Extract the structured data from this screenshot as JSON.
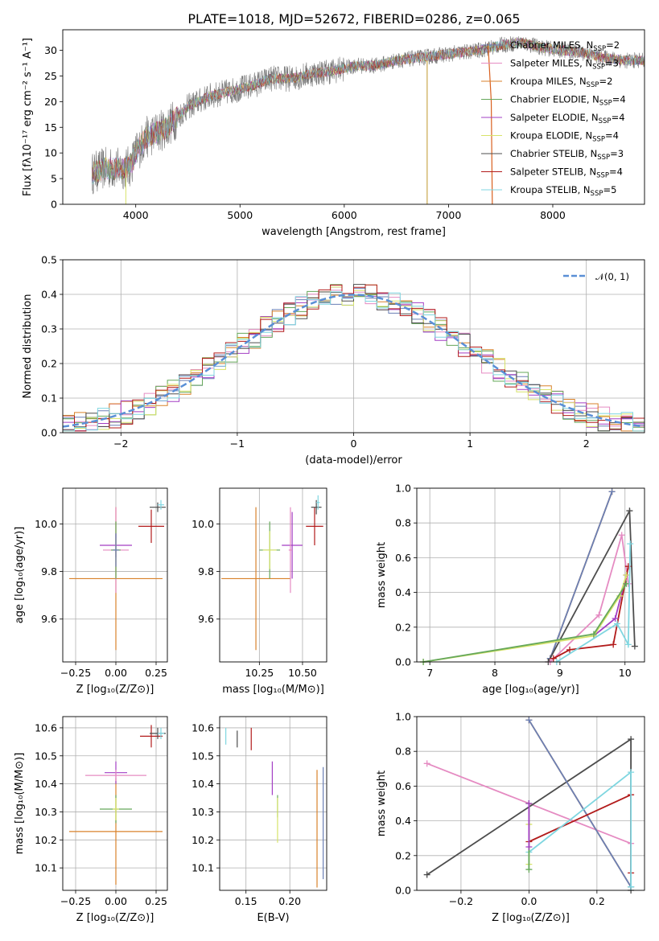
{
  "chart_data": [
    {
      "id": "spectrum",
      "type": "line",
      "title": "PLATE=1018, MJD=52672, FIBERID=0286, z=0.065",
      "xlabel": "wavelength [Angstrom, rest frame]",
      "ylabel": "Flux [fλ10⁻¹⁷ erg cm⁻² s⁻¹ A⁻¹]",
      "xlim": [
        3300,
        8880
      ],
      "ylim": [
        0,
        34
      ],
      "xticks": [
        "4000",
        "5000",
        "6000",
        "7000",
        "8000"
      ],
      "yticks": [
        "0",
        "5",
        "10",
        "15",
        "20",
        "25",
        "30"
      ],
      "legend_position": "right",
      "legend": [
        {
          "label": "Chabrier MILES, N",
          "sub": "SSP",
          "suffix": "=2",
          "color": "#6a7fb5"
        },
        {
          "label": "Salpeter MILES, N",
          "sub": "SSP",
          "suffix": "=3",
          "color": "#e58bc2"
        },
        {
          "label": "Kroupa MILES, N",
          "sub": "SSP",
          "suffix": "=2",
          "color": "#d9822b"
        },
        {
          "label": "Chabrier ELODIE, N",
          "sub": "SSP",
          "suffix": "=4",
          "color": "#66a85a"
        },
        {
          "label": "Salpeter ELODIE, N",
          "sub": "SSP",
          "suffix": "=4",
          "color": "#a33fc4"
        },
        {
          "label": "Kroupa ELODIE, N",
          "sub": "SSP",
          "suffix": "=4",
          "color": "#d7e36a"
        },
        {
          "label": "Chabrier STELIB, N",
          "sub": "SSP",
          "suffix": "=3",
          "color": "#4d4d4d"
        },
        {
          "label": "Salpeter STELIB, N",
          "sub": "SSP",
          "suffix": "=4",
          "color": "#b21b1b"
        },
        {
          "label": "Kroupa STELIB, N",
          "sub": "SSP",
          "suffix": "=5",
          "color": "#7fd6e0"
        }
      ],
      "continuum_anchors": [
        [
          3580,
          6
        ],
        [
          3700,
          7
        ],
        [
          3800,
          7
        ],
        [
          3900,
          7
        ],
        [
          3950,
          7.5
        ],
        [
          4000,
          10
        ],
        [
          4100,
          13
        ],
        [
          4300,
          15
        ],
        [
          4500,
          19
        ],
        [
          4700,
          21
        ],
        [
          4900,
          22
        ],
        [
          5100,
          23
        ],
        [
          5300,
          24.5
        ],
        [
          5500,
          24.5
        ],
        [
          5700,
          25.5
        ],
        [
          5900,
          26
        ],
        [
          6100,
          27
        ],
        [
          6300,
          27
        ],
        [
          6500,
          28
        ],
        [
          6700,
          28.5
        ],
        [
          6900,
          29
        ],
        [
          7100,
          29.5
        ],
        [
          7300,
          30
        ],
        [
          7500,
          31
        ],
        [
          7700,
          31.5
        ],
        [
          7900,
          30.5
        ],
        [
          8100,
          30
        ],
        [
          8300,
          29.5
        ],
        [
          8500,
          28.5
        ],
        [
          8700,
          28
        ],
        [
          8880,
          28
        ]
      ]
    },
    {
      "id": "residuals",
      "type": "line",
      "xlabel": "(data-model)/error",
      "ylabel": "Normed distribution",
      "xlim": [
        -2.5,
        2.5
      ],
      "ylim": [
        0,
        0.5
      ],
      "xticks": [
        "−2",
        "−1",
        "0",
        "1",
        "2"
      ],
      "yticks": [
        "0.0",
        "0.1",
        "0.2",
        "0.3",
        "0.4",
        "0.5"
      ],
      "grid": true,
      "legend_position": "top-right",
      "legend": [
        {
          "label": "𝒩(0, 1)",
          "color": "#5a8fd6"
        }
      ]
    },
    {
      "id": "age-vs-Z",
      "type": "scatter",
      "xlabel": "Z [log₁₀(Z/Z⊙)]",
      "ylabel": "age  [log₁₀(age/yr)]",
      "xlim": [
        -0.33,
        0.32
      ],
      "ylim": [
        9.42,
        10.15
      ],
      "xticks": [
        "−0.25",
        "0.00",
        "0.25"
      ],
      "yticks": [
        "9.6",
        "9.8",
        "10.0"
      ],
      "grid": true,
      "points": [
        {
          "x": 0.0,
          "y": 9.77,
          "xerr": 0.29,
          "yerr": 0.3,
          "color": "#d9822b"
        },
        {
          "x": 0.0,
          "y": 9.89,
          "xerr": 0.08,
          "yerr": 0.18,
          "color": "#e58bc2"
        },
        {
          "x": 0.0,
          "y": 9.91,
          "xerr": 0.1,
          "yerr": 0.05,
          "color": "#a33fc4"
        },
        {
          "x": 0.0,
          "y": 9.89,
          "xerr": 0.03,
          "yerr": 0.12,
          "color": "#66a85a"
        },
        {
          "x": 0.0,
          "y": 9.89,
          "xerr": 0.02,
          "yerr": 0.05,
          "color": "#d7e36a"
        },
        {
          "x": 0.0,
          "y": 9.89,
          "xerr": 0.02,
          "yerr": 0.07,
          "color": "#6a7fb5"
        },
        {
          "x": 0.22,
          "y": 9.99,
          "xerr": 0.08,
          "yerr": 0.07,
          "color": "#b21b1b"
        },
        {
          "x": 0.26,
          "y": 10.07,
          "xerr": 0.05,
          "yerr": 0.02,
          "color": "#4d4d4d"
        },
        {
          "x": 0.28,
          "y": 10.08,
          "xerr": 0.02,
          "yerr": 0.02,
          "color": "#7fd6e0"
        }
      ]
    },
    {
      "id": "age-vs-mass",
      "type": "scatter",
      "xlabel": "mass [log₁₀(M/M⊙)]",
      "ylabel": "",
      "xlim": [
        10.02,
        10.64
      ],
      "ylim": [
        9.42,
        10.15
      ],
      "xticks": [
        "10.25",
        "10.50"
      ],
      "yticks": [
        "9.6",
        "9.8",
        "10.0"
      ],
      "grid": true,
      "points": [
        {
          "x": 10.23,
          "y": 9.77,
          "xerr": 0.2,
          "yerr": 0.3,
          "color": "#d9822b"
        },
        {
          "x": 10.31,
          "y": 9.89,
          "xerr": 0.06,
          "yerr": 0.12,
          "color": "#66a85a"
        },
        {
          "x": 10.31,
          "y": 9.89,
          "xerr": 0.04,
          "yerr": 0.08,
          "color": "#d7e36a"
        },
        {
          "x": 10.44,
          "y": 9.91,
          "xerr": 0.06,
          "yerr": 0.14,
          "color": "#a33fc4"
        },
        {
          "x": 10.43,
          "y": 9.89,
          "xerr": 0.01,
          "yerr": 0.18,
          "color": "#e58bc2"
        },
        {
          "x": 10.57,
          "y": 9.99,
          "xerr": 0.05,
          "yerr": 0.08,
          "color": "#b21b1b"
        },
        {
          "x": 10.58,
          "y": 10.07,
          "xerr": 0.03,
          "yerr": 0.03,
          "color": "#4d4d4d"
        },
        {
          "x": 10.59,
          "y": 10.09,
          "xerr": 0.01,
          "yerr": 0.03,
          "color": "#7fd6e0"
        }
      ]
    },
    {
      "id": "mass-weight-vs-age",
      "type": "line",
      "xlabel": "age  [log₁₀(age/yr)]",
      "ylabel": "mass weight",
      "xlim": [
        6.8,
        10.3
      ],
      "ylim": [
        0,
        1
      ],
      "xticks": [
        "7",
        "8",
        "9",
        "10"
      ],
      "yticks": [
        "0.0",
        "0.2",
        "0.4",
        "0.6",
        "0.8",
        "1.0"
      ],
      "grid": true,
      "series": [
        {
          "color": "#d9822b",
          "x": [
            8.85,
            9.8
          ],
          "y": [
            0.02,
            0.98
          ]
        },
        {
          "color": "#6a7fb5",
          "x": [
            8.85,
            9.8
          ],
          "y": [
            0.02,
            0.98
          ]
        },
        {
          "color": "#4d4d4d",
          "x": [
            8.82,
            10.07,
            10.15
          ],
          "y": [
            0.0,
            0.87,
            0.09
          ]
        },
        {
          "color": "#e58bc2",
          "x": [
            8.85,
            9.6,
            9.95,
            10.05
          ],
          "y": [
            0.0,
            0.27,
            0.73,
            0.45
          ]
        },
        {
          "color": "#b21b1b",
          "x": [
            8.9,
            9.15,
            9.82,
            10.05
          ],
          "y": [
            0.02,
            0.07,
            0.1,
            0.55
          ]
        },
        {
          "color": "#a33fc4",
          "x": [
            9.52,
            9.85,
            10.02
          ],
          "y": [
            0.15,
            0.25,
            0.5
          ]
        },
        {
          "color": "#d7e36a",
          "x": [
            6.9,
            9.52,
            9.92,
            10.02
          ],
          "y": [
            0.0,
            0.15,
            0.38,
            0.5
          ]
        },
        {
          "color": "#66a85a",
          "x": [
            6.9,
            9.52,
            10.02
          ],
          "y": [
            0.0,
            0.16,
            0.45
          ]
        },
        {
          "color": "#7fd6e0",
          "x": [
            8.95,
            9.88,
            10.05,
            10.08
          ],
          "y": [
            0.0,
            0.22,
            0.1,
            0.68
          ]
        }
      ]
    },
    {
      "id": "mass-vs-Z",
      "type": "scatter",
      "xlabel": "Z [log₁₀(Z/Z⊙)]",
      "ylabel": "mass [log₁₀(M/M⊙)]",
      "xlim": [
        -0.33,
        0.32
      ],
      "ylim": [
        10.02,
        10.64
      ],
      "xticks": [
        "−0.25",
        "0.00",
        "0.25"
      ],
      "yticks": [
        "10.1",
        "10.2",
        "10.3",
        "10.4",
        "10.5",
        "10.6"
      ],
      "grid": true,
      "points": [
        {
          "x": 0.0,
          "y": 10.23,
          "xerr": 0.29,
          "yerr": 0.19,
          "color": "#d9822b"
        },
        {
          "x": 0.0,
          "y": 10.31,
          "xerr": 0.1,
          "yerr": 0.05,
          "color": "#66a85a"
        },
        {
          "x": 0.0,
          "y": 10.31,
          "xerr": 0.02,
          "yerr": 0.04,
          "color": "#d7e36a"
        },
        {
          "x": 0.0,
          "y": 10.44,
          "xerr": 0.07,
          "yerr": 0.04,
          "color": "#a33fc4"
        },
        {
          "x": 0.0,
          "y": 10.43,
          "xerr": 0.19,
          "yerr": 0.02,
          "color": "#e58bc2"
        },
        {
          "x": 0.22,
          "y": 10.57,
          "xerr": 0.07,
          "yerr": 0.04,
          "color": "#b21b1b"
        },
        {
          "x": 0.26,
          "y": 10.58,
          "xerr": 0.05,
          "yerr": 0.02,
          "color": "#4d4d4d"
        },
        {
          "x": 0.28,
          "y": 10.58,
          "xerr": 0.02,
          "yerr": 0.02,
          "color": "#7fd6e0"
        }
      ]
    },
    {
      "id": "mass-vs-EBV",
      "type": "scatter",
      "xlabel": "E(B-V)",
      "ylabel": "",
      "xlim": [
        0.12,
        0.242
      ],
      "ylim": [
        10.02,
        10.64
      ],
      "xticks": [
        "0.15",
        "0.20"
      ],
      "yticks": [
        "10.1",
        "10.2",
        "10.3",
        "10.4",
        "10.5",
        "10.6"
      ],
      "grid": true,
      "points": [
        {
          "x": 0.127,
          "y": 10.57,
          "yerr": 0.03,
          "color": "#7fd6e0"
        },
        {
          "x": 0.14,
          "y": 10.56,
          "yerr": 0.03,
          "color": "#4d4d4d"
        },
        {
          "x": 0.156,
          "y": 10.56,
          "yerr": 0.04,
          "color": "#b21b1b"
        },
        {
          "x": 0.18,
          "y": 10.42,
          "yerr": 0.06,
          "color": "#a33fc4"
        },
        {
          "x": 0.186,
          "y": 10.32,
          "yerr": 0.04,
          "color": "#66a85a"
        },
        {
          "x": 0.186,
          "y": 10.27,
          "yerr": 0.08,
          "color": "#d7e36a"
        },
        {
          "x": 0.231,
          "y": 10.24,
          "yerr": 0.21,
          "color": "#d9822b"
        },
        {
          "x": 0.238,
          "y": 10.26,
          "yerr": 0.2,
          "color": "#6a7fb5"
        }
      ]
    },
    {
      "id": "mass-weight-vs-Z",
      "type": "line",
      "xlabel": "Z [log₁₀(Z/Z⊙)]",
      "ylabel": "mass weight",
      "xlim": [
        -0.33,
        0.34
      ],
      "ylim": [
        0,
        1
      ],
      "xticks": [
        "−0.2",
        "0.0",
        "0.2"
      ],
      "yticks": [
        "0.0",
        "0.2",
        "0.4",
        "0.6",
        "0.8",
        "1.0"
      ],
      "grid": true,
      "series": [
        {
          "color": "#e58bc2",
          "x": [
            -0.3,
            0.3
          ],
          "y": [
            0.73,
            0.27
          ]
        },
        {
          "color": "#4d4d4d",
          "x": [
            -0.3,
            0.3,
            0.3
          ],
          "y": [
            0.09,
            0.87,
            0.0
          ]
        },
        {
          "color": "#d9822b",
          "x": [
            0.0,
            0.3
          ],
          "y": [
            0.98,
            0.02
          ]
        },
        {
          "color": "#6a7fb5",
          "x": [
            0.0,
            0.3
          ],
          "y": [
            0.98,
            0.02
          ]
        },
        {
          "color": "#b21b1b",
          "x": [
            0.0,
            0.3,
            0.3
          ],
          "y": [
            0.28,
            0.55,
            0.1
          ]
        },
        {
          "color": "#7fd6e0",
          "x": [
            0.0,
            0.3,
            0.3
          ],
          "y": [
            0.22,
            0.68,
            0.02
          ]
        },
        {
          "color": "#d7e36a",
          "x": [
            0.0,
            0.0,
            0.0
          ],
          "y": [
            0.5,
            0.38,
            0.15
          ]
        },
        {
          "color": "#66a85a",
          "x": [
            0.0,
            0.0
          ],
          "y": [
            0.5,
            0.12
          ]
        },
        {
          "color": "#a33fc4",
          "x": [
            0.0,
            0.0
          ],
          "y": [
            0.25,
            0.5
          ]
        }
      ]
    }
  ]
}
